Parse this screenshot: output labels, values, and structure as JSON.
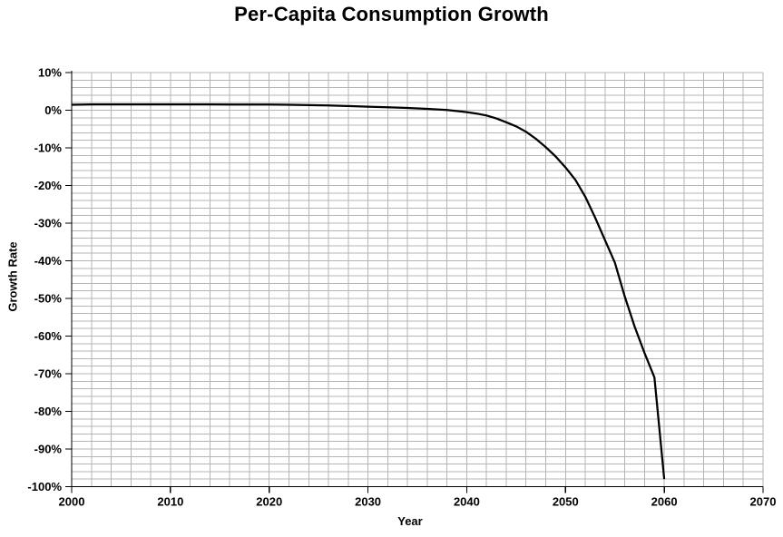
{
  "colors": {
    "background": "#ffffff",
    "gridline": "#b4b4b4",
    "axis": "#000000",
    "text": "#000000",
    "series_line": "#000000"
  },
  "chart_data": {
    "type": "line",
    "title": "Per-Capita Consumption Growth",
    "xlabel": "Year",
    "ylabel": "Growth Rate",
    "xlim": [
      2000,
      2070
    ],
    "ylim": [
      -100,
      10
    ],
    "x_minor_step": 2,
    "y_minor_step": 2,
    "x_tick_values": [
      2000,
      2010,
      2020,
      2030,
      2040,
      2050,
      2060,
      2070
    ],
    "x_tick_labels": [
      "2000",
      "2010",
      "2020",
      "2030",
      "2040",
      "2050",
      "2060",
      "2070"
    ],
    "y_tick_values": [
      10,
      0,
      -10,
      -20,
      -30,
      -40,
      -50,
      -60,
      -70,
      -80,
      -90,
      -100
    ],
    "y_tick_labels": [
      "10%",
      "0%",
      "-10%",
      "-20%",
      "-30%",
      "-40%",
      "-50%",
      "-60%",
      "-70%",
      "-80%",
      "-90%",
      "-100%"
    ],
    "grid": {
      "minor": true,
      "major": true,
      "color": "#b4b4b4",
      "style": "solid"
    },
    "legend": "none",
    "series": [
      {
        "name": "Growth Rate",
        "color": "#000000",
        "points": [
          [
            2000,
            1.45
          ],
          [
            2002,
            1.55
          ],
          [
            2006,
            1.55
          ],
          [
            2010,
            1.55
          ],
          [
            2014,
            1.55
          ],
          [
            2018,
            1.5
          ],
          [
            2020,
            1.5
          ],
          [
            2022,
            1.45
          ],
          [
            2024,
            1.35
          ],
          [
            2026,
            1.25
          ],
          [
            2028,
            1.1
          ],
          [
            2030,
            0.95
          ],
          [
            2032,
            0.8
          ],
          [
            2034,
            0.6
          ],
          [
            2036,
            0.35
          ],
          [
            2038,
            0.05
          ],
          [
            2040,
            -0.5
          ],
          [
            2041,
            -0.9
          ],
          [
            2042,
            -1.4
          ],
          [
            2043,
            -2.2
          ],
          [
            2044,
            -3.2
          ],
          [
            2045,
            -4.3
          ],
          [
            2046,
            -5.7
          ],
          [
            2047,
            -7.6
          ],
          [
            2048,
            -9.8
          ],
          [
            2049,
            -12.3
          ],
          [
            2050,
            -15.2
          ],
          [
            2051,
            -18.5
          ],
          [
            2052,
            -23.0
          ],
          [
            2053,
            -28.5
          ],
          [
            2054,
            -34.5
          ],
          [
            2055,
            -40.5
          ],
          [
            2056,
            -49.5
          ],
          [
            2057,
            -57.5
          ],
          [
            2058,
            -64.5
          ],
          [
            2059,
            -71.0
          ],
          [
            2060,
            -98.0
          ]
        ]
      }
    ]
  }
}
